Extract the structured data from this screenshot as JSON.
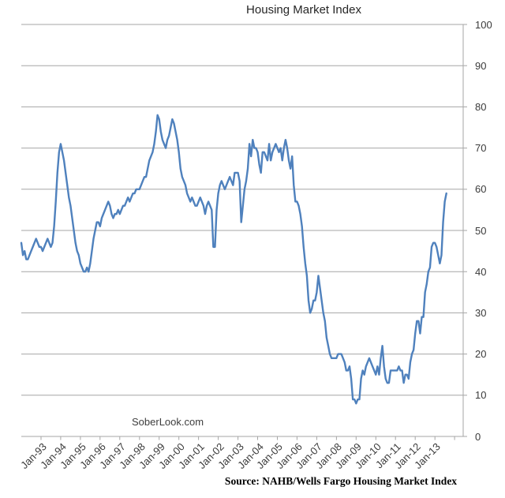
{
  "page": {
    "background": "#ffffff"
  },
  "header": {
    "title": "Housing Market Index"
  },
  "annotations": {
    "watermark": "SoberLook.com",
    "source": "Source: NAHB/Wells Fargo Housing Market Index"
  },
  "colors": {
    "line": "#4F81BD",
    "grid": "#a6a6a6",
    "axis": "#a6a6a6",
    "tick_text": "#3a3a3a",
    "title_text": "#262626"
  },
  "chart_data": {
    "type": "line",
    "title": "Housing Market Index",
    "xlabel": "",
    "ylabel": "",
    "ylim": [
      0,
      100
    ],
    "y_ticks": [
      0,
      10,
      20,
      30,
      40,
      50,
      60,
      70,
      80,
      90,
      100
    ],
    "y_axis_side": "right",
    "grid": "horizontal",
    "legend": "none",
    "x_start": "Jan-1992",
    "x_frequency": "monthly",
    "x_tick_labels": [
      "Jan-93",
      "Jan-94",
      "Jan-95",
      "Jan-96",
      "Jan-97",
      "Jan-98",
      "Jan-99",
      "Jan-00",
      "Jan-01",
      "Jan-02",
      "Jan-03",
      "Jan-04",
      "Jan-05",
      "Jan-06",
      "Jan-07",
      "Jan-08",
      "Jan-09",
      "Jan-10",
      "Jan-11",
      "Jan-12",
      "Jan-13"
    ],
    "series": [
      {
        "name": "NAHB/Wells Fargo Housing Market Index",
        "values": [
          47,
          44,
          45,
          43,
          43,
          44,
          45,
          46,
          47,
          48,
          47,
          46,
          46,
          45,
          46,
          47,
          48,
          47,
          46,
          47,
          51,
          57,
          64,
          69,
          71,
          69,
          67,
          64,
          61,
          58,
          56,
          53,
          50,
          47,
          45,
          44,
          42,
          41,
          40,
          40,
          41,
          40,
          42,
          45,
          48,
          50,
          52,
          52,
          51,
          53,
          54,
          55,
          56,
          57,
          56,
          54,
          53,
          54,
          54,
          55,
          54,
          55,
          56,
          56,
          57,
          58,
          57,
          58,
          59,
          59,
          60,
          60,
          60,
          61,
          62,
          63,
          63,
          65,
          67,
          68,
          69,
          71,
          74,
          78,
          77,
          74,
          72,
          71,
          70,
          72,
          73,
          75,
          77,
          76,
          74,
          72,
          69,
          65,
          63,
          62,
          61,
          59,
          58,
          57,
          58,
          57,
          56,
          56,
          57,
          58,
          57,
          56,
          54,
          56,
          57,
          56,
          55,
          46,
          46,
          55,
          59,
          61,
          62,
          61,
          60,
          61,
          62,
          63,
          62,
          61,
          64,
          64,
          64,
          62,
          52,
          56,
          60,
          62,
          65,
          71,
          68,
          72,
          70,
          70,
          69,
          66,
          64,
          69,
          69,
          68,
          67,
          71,
          67,
          69,
          70,
          71,
          70,
          69,
          70,
          67,
          70,
          72,
          70,
          67,
          65,
          68,
          61,
          57,
          57,
          56,
          54,
          51,
          46,
          42,
          39,
          33,
          30,
          31,
          33,
          33,
          35,
          39,
          36,
          33,
          30,
          28,
          24,
          22,
          20,
          19,
          19,
          19,
          19,
          20,
          20,
          20,
          19,
          18,
          16,
          16,
          17,
          14,
          9,
          9,
          8,
          9,
          9,
          14,
          16,
          15,
          17,
          18,
          19,
          18,
          17,
          16,
          15,
          17,
          15,
          19,
          22,
          17,
          14,
          13,
          13,
          16,
          16,
          16,
          16,
          16,
          17,
          16,
          16,
          13,
          15,
          15,
          14,
          18,
          20,
          21,
          25,
          28,
          28,
          25,
          29,
          29,
          35,
          37,
          40,
          41,
          46,
          47,
          47,
          46,
          44,
          42,
          44,
          52,
          57,
          59
        ]
      }
    ]
  }
}
